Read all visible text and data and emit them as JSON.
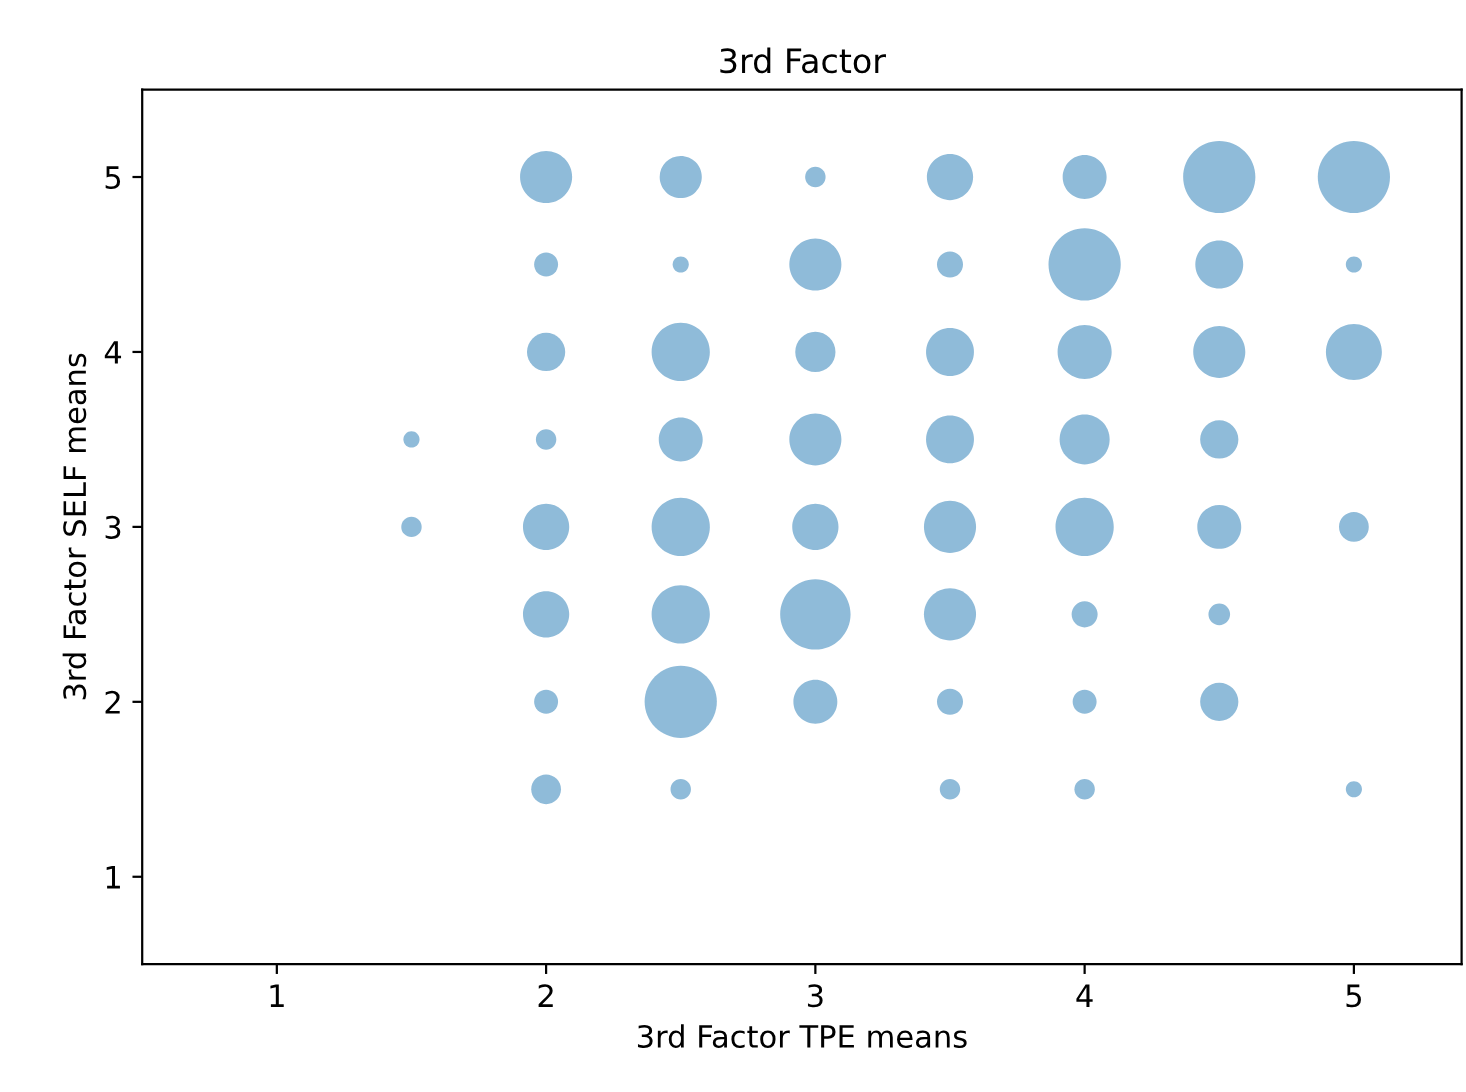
{
  "chart_data": {
    "type": "bubble",
    "title": "3rd Factor",
    "xlabel": "3rd Factor TPE means",
    "ylabel": "3rd Factor SELF means",
    "xlim": [
      0.5,
      5.4
    ],
    "ylim": [
      0.5,
      5.5
    ],
    "xticks": [
      1,
      2,
      3,
      4,
      5
    ],
    "yticks": [
      1,
      2,
      3,
      4,
      5
    ],
    "grid": false,
    "legend": false,
    "series": [
      {
        "color": "#1f77b4",
        "x": [
          2,
          2.5,
          3,
          3.5,
          4,
          4.5,
          5,
          2,
          2.5,
          3,
          3.5,
          4,
          4.5,
          5,
          2,
          2.5,
          3,
          3.5,
          4,
          4.5,
          5,
          1.5,
          2,
          2.5,
          3,
          3.5,
          4,
          4.5,
          1.5,
          2,
          2.5,
          3,
          3.5,
          4,
          4.5,
          5,
          2,
          2.5,
          3,
          3.5,
          4,
          4.5,
          2,
          2.5,
          3,
          3.5,
          4,
          4.5,
          2,
          2.5,
          3.5,
          4,
          5
        ],
        "values": [
          5,
          5,
          5,
          5,
          5,
          5,
          5,
          4.5,
          4.5,
          4.5,
          4.5,
          4.5,
          4.5,
          4.5,
          4,
          4,
          4,
          4,
          4,
          4,
          4,
          3.5,
          3.5,
          3.5,
          3.5,
          3.5,
          3.5,
          3.5,
          3,
          3,
          3,
          3,
          3,
          3,
          3,
          3,
          2.5,
          2.5,
          2.5,
          2.5,
          2.5,
          2.5,
          2,
          2,
          2,
          2,
          2,
          2,
          1.5,
          1.5,
          1.5,
          1.5,
          1.5
        ],
        "sizes": [
          0.52,
          0.34,
          0.08,
          0.41,
          0.37,
          1,
          1,
          0.11,
          0.05,
          0.52,
          0.13,
          1,
          0.44,
          0.05,
          0.28,
          0.65,
          0.31,
          0.44,
          0.56,
          0.52,
          0.6,
          0.05,
          0.08,
          0.37,
          0.52,
          0.44,
          0.48,
          0.28,
          0.08,
          0.41,
          0.65,
          0.41,
          0.52,
          0.65,
          0.37,
          0.17,
          0.41,
          0.65,
          0.95,
          0.52,
          0.13,
          0.09,
          0.11,
          1,
          0.37,
          0.13,
          0.11,
          0.28,
          0.17,
          0.08,
          0.08,
          0.08,
          0.05
        ]
      }
    ]
  }
}
